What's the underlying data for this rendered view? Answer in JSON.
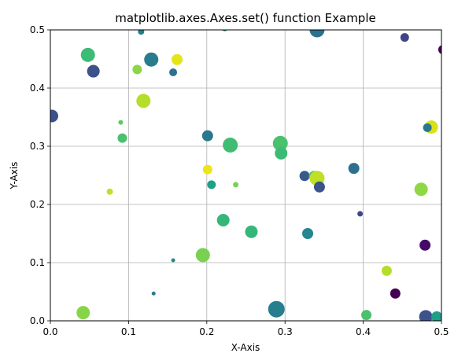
{
  "chart_data": {
    "type": "scatter",
    "title": "matplotlib.axes.Axes.set() function Example",
    "xlabel": "X-Axis",
    "ylabel": "Y-Axis",
    "xlim": [
      0.0,
      0.5
    ],
    "ylim": [
      0.0,
      0.5
    ],
    "xticks": [
      "0.0",
      "0.1",
      "0.2",
      "0.3",
      "0.4",
      "0.5"
    ],
    "yticks": [
      "0.0",
      "0.1",
      "0.2",
      "0.3",
      "0.4",
      "0.5"
    ],
    "grid": true,
    "colormap": "viridis",
    "points": [
      {
        "x": 0.002,
        "y": 0.352,
        "size": 8,
        "color": "#3b518b"
      },
      {
        "x": 0.042,
        "y": 0.014,
        "size": 8.5,
        "color": "#86d549"
      },
      {
        "x": 0.048,
        "y": 0.457,
        "size": 9,
        "color": "#3cbc75"
      },
      {
        "x": 0.055,
        "y": 0.429,
        "size": 8,
        "color": "#3b528b"
      },
      {
        "x": 0.076,
        "y": 0.222,
        "size": 4,
        "color": "#c2df23"
      },
      {
        "x": 0.09,
        "y": 0.341,
        "size": 3,
        "color": "#5ec962"
      },
      {
        "x": 0.092,
        "y": 0.314,
        "size": 6,
        "color": "#4ac16d"
      },
      {
        "x": 0.111,
        "y": 0.432,
        "size": 6,
        "color": "#8bd646"
      },
      {
        "x": 0.116,
        "y": 0.497,
        "size": 4,
        "color": "#287d8e"
      },
      {
        "x": 0.119,
        "y": 0.378,
        "size": 9,
        "color": "#b5de2b"
      },
      {
        "x": 0.129,
        "y": 0.449,
        "size": 9,
        "color": "#297b8e"
      },
      {
        "x": 0.132,
        "y": 0.047,
        "size": 2.5,
        "color": "#2a788e"
      },
      {
        "x": 0.157,
        "y": 0.104,
        "size": 2.5,
        "color": "#23898e"
      },
      {
        "x": 0.157,
        "y": 0.427,
        "size": 5,
        "color": "#2c728e"
      },
      {
        "x": 0.162,
        "y": 0.449,
        "size": 7,
        "color": "#e5e419"
      },
      {
        "x": 0.195,
        "y": 0.113,
        "size": 9,
        "color": "#7ad151"
      },
      {
        "x": 0.201,
        "y": 0.26,
        "size": 6,
        "color": "#ece51b"
      },
      {
        "x": 0.201,
        "y": 0.318,
        "size": 7,
        "color": "#2a788e"
      },
      {
        "x": 0.206,
        "y": 0.234,
        "size": 5.5,
        "color": "#1fa088"
      },
      {
        "x": 0.221,
        "y": 0.173,
        "size": 8,
        "color": "#35b779"
      },
      {
        "x": 0.23,
        "y": 0.302,
        "size": 9.5,
        "color": "#40bd72"
      },
      {
        "x": 0.237,
        "y": 0.234,
        "size": 3.5,
        "color": "#7ad151"
      },
      {
        "x": 0.257,
        "y": 0.153,
        "size": 8,
        "color": "#35b779"
      },
      {
        "x": 0.289,
        "y": 0.02,
        "size": 10.5,
        "color": "#277f8e"
      },
      {
        "x": 0.294,
        "y": 0.305,
        "size": 9.5,
        "color": "#4ac16d"
      },
      {
        "x": 0.295,
        "y": 0.288,
        "size": 8,
        "color": "#3bbb75"
      },
      {
        "x": 0.325,
        "y": 0.249,
        "size": 6.5,
        "color": "#375a8c"
      },
      {
        "x": 0.329,
        "y": 0.15,
        "size": 7,
        "color": "#24868e"
      },
      {
        "x": 0.337,
        "y": 0.249,
        "size": 6.5,
        "color": "#52c569"
      },
      {
        "x": 0.341,
        "y": 0.245,
        "size": 9.5,
        "color": "#c0df25"
      },
      {
        "x": 0.341,
        "y": 0.5,
        "size": 9.5,
        "color": "#2c728e"
      },
      {
        "x": 0.344,
        "y": 0.23,
        "size": 7,
        "color": "#3b528b"
      },
      {
        "x": 0.388,
        "y": 0.262,
        "size": 7,
        "color": "#2d708e"
      },
      {
        "x": 0.396,
        "y": 0.184,
        "size": 3.5,
        "color": "#3f4788"
      },
      {
        "x": 0.404,
        "y": 0.01,
        "size": 6.5,
        "color": "#4ac16d"
      },
      {
        "x": 0.43,
        "y": 0.086,
        "size": 6.5,
        "color": "#b5de2b"
      },
      {
        "x": 0.441,
        "y": 0.047,
        "size": 6.5,
        "color": "#440154"
      },
      {
        "x": 0.453,
        "y": 0.487,
        "size": 5.5,
        "color": "#414487"
      },
      {
        "x": 0.474,
        "y": 0.226,
        "size": 8.5,
        "color": "#8fd744"
      },
      {
        "x": 0.479,
        "y": 0.13,
        "size": 7,
        "color": "#440a68"
      },
      {
        "x": 0.48,
        "y": 0.007,
        "size": 8.5,
        "color": "#3b528b"
      },
      {
        "x": 0.487,
        "y": 0.333,
        "size": 8.5,
        "color": "#d8e219"
      },
      {
        "x": 0.482,
        "y": 0.332,
        "size": 5.5,
        "color": "#2a788e"
      },
      {
        "x": 0.494,
        "y": 0.007,
        "size": 7,
        "color": "#1f9e89"
      },
      {
        "x": 0.502,
        "y": 0.466,
        "size": 6,
        "color": "#440154"
      },
      {
        "x": 0.223,
        "y": 0.503,
        "size": 4,
        "color": "#21918c"
      }
    ]
  }
}
